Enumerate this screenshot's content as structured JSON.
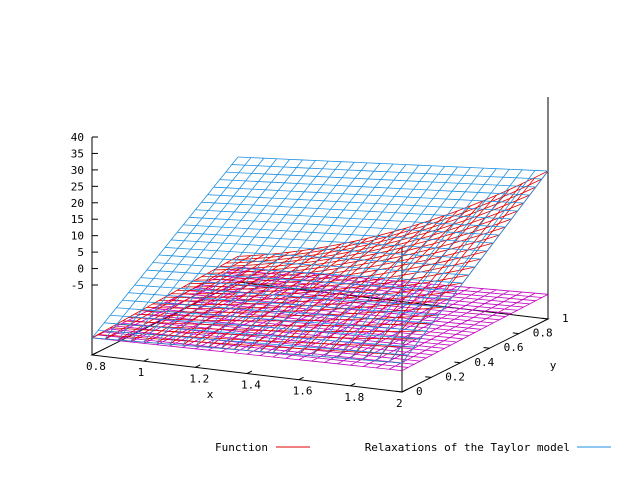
{
  "chart_data": {
    "type": "surface3d",
    "title": "",
    "xlabel": "x",
    "ylabel": "y",
    "zlabel": "",
    "xlim": [
      0.8,
      2
    ],
    "ylim": [
      0,
      1
    ],
    "zlim": [
      -5,
      40
    ],
    "x_ticks": [
      "0.8",
      "1",
      "1.2",
      "1.4",
      "1.6",
      "1.8",
      "2"
    ],
    "y_ticks": [
      "0",
      "0.2",
      "0.4",
      "0.6",
      "0.8",
      "1"
    ],
    "z_ticks": [
      "40",
      "35",
      "30",
      "25",
      "20",
      "15",
      "10",
      "5",
      "0",
      "-5"
    ],
    "grid": false,
    "legend_position": "bottom",
    "series": [
      {
        "name": "Function",
        "color": "#e00000",
        "corner_values": {
          "x0.8_y0": 0.2,
          "x2_y0": 3.8,
          "x0.8_y1": 2.8,
          "x2_y1": 40
        }
      },
      {
        "name": "Relaxations of the Taylor model",
        "color": "#1e90e0",
        "corner_values": {
          "x0.8_y0": 0.2,
          "x2_y0": 3.8,
          "x0.8_y1": 33,
          "x2_y1": 40
        }
      },
      {
        "name": "",
        "color": "#c000c0",
        "corner_values": {
          "x0.8_y0": 0.2,
          "x2_y0": 1.5,
          "x0.8_y1": -0.5,
          "x2_y1": 2.5
        }
      }
    ]
  }
}
